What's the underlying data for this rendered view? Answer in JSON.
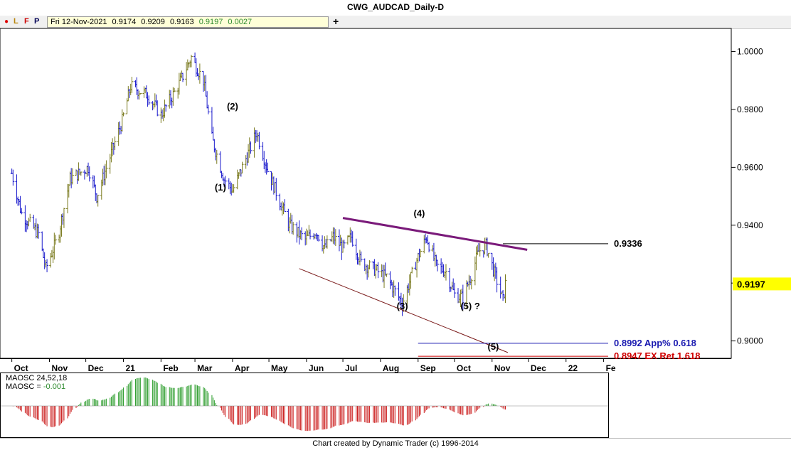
{
  "window": {
    "title": "CWG_AUDCAD_Daily-D"
  },
  "toolbar": {
    "indicator_dot": "●",
    "btn_l": "L",
    "btn_f": "F",
    "btn_p": "P",
    "ohlc": {
      "date": "Fri 12-Nov-2021",
      "open": "0.9174",
      "high": "0.9209",
      "low": "0.9163",
      "close": "0.9197",
      "change": "0.0027"
    },
    "add_label": "+"
  },
  "colors": {
    "up_bar": "#7a7a1e",
    "down_bar": "#1a1acc",
    "resistance_line": "#7a1a7a",
    "support_line": "#7a1a1a",
    "target_blue": "#1a1ab0",
    "target_red": "#d00000",
    "price_badge": "#ffff00",
    "osc_up": "#2e9e2e",
    "osc_down": "#cc2020"
  },
  "chart_data": {
    "type": "ohlc",
    "title": "CWG_AUDCAD_Daily-D",
    "x_tick_labels": [
      "Oct",
      "Nov",
      "Dec",
      "21",
      "Feb",
      "Mar",
      "Apr",
      "May",
      "Jun",
      "Jul",
      "Aug",
      "Sep",
      "Oct",
      "Nov",
      "Dec",
      "22",
      "Fe"
    ],
    "y_tick_labels": [
      "1.0000",
      "0.9800",
      "0.9600",
      "0.9400",
      "0.9200",
      "0.9000"
    ],
    "ylim": [
      0.894,
      1.008
    ],
    "price_anchors": [
      {
        "date": "2020-10-01",
        "price": 0.958
      },
      {
        "date": "2020-10-09",
        "price": 0.944
      },
      {
        "date": "2020-10-23",
        "price": 0.937
      },
      {
        "date": "2020-10-29",
        "price": 0.925
      },
      {
        "date": "2020-11-08",
        "price": 0.936
      },
      {
        "date": "2020-11-18",
        "price": 0.956
      },
      {
        "date": "2020-12-03",
        "price": 0.96
      },
      {
        "date": "2020-12-10",
        "price": 0.95
      },
      {
        "date": "2020-12-31",
        "price": 0.976
      },
      {
        "date": "2021-01-07",
        "price": 0.988
      },
      {
        "date": "2021-01-21",
        "price": 0.985
      },
      {
        "date": "2021-02-01",
        "price": 0.978
      },
      {
        "date": "2021-02-15",
        "price": 0.988
      },
      {
        "date": "2021-02-26",
        "price": 0.998
      },
      {
        "date": "2021-03-08",
        "price": 0.99
      },
      {
        "date": "2021-03-15",
        "price": 0.97
      },
      {
        "date": "2021-03-25",
        "price": 0.956
      },
      {
        "date": "2021-04-01",
        "price": 0.952
      },
      {
        "date": "2021-04-14",
        "price": 0.965
      },
      {
        "date": "2021-04-21",
        "price": 0.972
      },
      {
        "date": "2021-04-30",
        "price": 0.959
      },
      {
        "date": "2021-05-12",
        "price": 0.946
      },
      {
        "date": "2021-05-18",
        "price": 0.94
      },
      {
        "date": "2021-05-31",
        "price": 0.935
      },
      {
        "date": "2021-06-09",
        "price": 0.938
      },
      {
        "date": "2021-06-16",
        "price": 0.932
      },
      {
        "date": "2021-06-23",
        "price": 0.936
      },
      {
        "date": "2021-07-01",
        "price": 0.932
      },
      {
        "date": "2021-07-08",
        "price": 0.936
      },
      {
        "date": "2021-07-16",
        "price": 0.927
      },
      {
        "date": "2021-07-26",
        "price": 0.925
      },
      {
        "date": "2021-08-06",
        "price": 0.922
      },
      {
        "date": "2021-08-19",
        "price": 0.913
      },
      {
        "date": "2021-08-31",
        "price": 0.928
      },
      {
        "date": "2021-09-08",
        "price": 0.936
      },
      {
        "date": "2021-09-16",
        "price": 0.926
      },
      {
        "date": "2021-09-24",
        "price": 0.924
      },
      {
        "date": "2021-10-01",
        "price": 0.916
      },
      {
        "date": "2021-10-08",
        "price": 0.915
      },
      {
        "date": "2021-10-15",
        "price": 0.923
      },
      {
        "date": "2021-10-21",
        "price": 0.931
      },
      {
        "date": "2021-10-27",
        "price": 0.933
      },
      {
        "date": "2021-11-04",
        "price": 0.922
      },
      {
        "date": "2021-11-10",
        "price": 0.914
      },
      {
        "date": "2021-11-12",
        "price": 0.9197
      }
    ],
    "wave_labels": [
      {
        "text": "(1)",
        "date": "2021-03-22",
        "price": 0.952
      },
      {
        "text": "(2)",
        "date": "2021-04-01",
        "price": 0.98
      },
      {
        "text": "(4)",
        "date": "2021-09-02",
        "price": 0.943
      },
      {
        "text": "(3)",
        "date": "2021-08-19",
        "price": 0.911
      },
      {
        "text": "(5) ?",
        "date": "2021-10-14",
        "price": 0.911
      },
      {
        "text": "(5)",
        "date": "2021-11-02",
        "price": 0.897
      }
    ],
    "trendlines": [
      {
        "name": "resistance",
        "from": {
          "date": "2021-07-01",
          "price": 0.9425
        },
        "to": {
          "date": "2021-11-30",
          "price": 0.9315
        }
      },
      {
        "name": "support",
        "from": {
          "date": "2021-05-26",
          "price": 0.925
        },
        "to": {
          "date": "2021-11-14",
          "price": 0.896
        }
      }
    ],
    "horizontal_levels": [
      {
        "price": 0.9336,
        "label": "0.9336",
        "from_date": "2021-11-10",
        "color": "#000000"
      },
      {
        "price": 0.8992,
        "label": "0.8992 App% 0.618",
        "from_date": "2021-09-01",
        "color": "#1a1ab0"
      },
      {
        "price": 0.8947,
        "label": "0.8947 EX Ret 1.618",
        "from_date": "2021-09-01",
        "color": "#d00000"
      }
    ],
    "last_price_label": "0.9197",
    "oscillator": {
      "name": "MAOSC 24,52,18",
      "value_label": "MAOSC =",
      "value": "-0.001"
    }
  },
  "footer": {
    "text": "Chart created by Dynamic Trader  (c) 1996-2014"
  }
}
